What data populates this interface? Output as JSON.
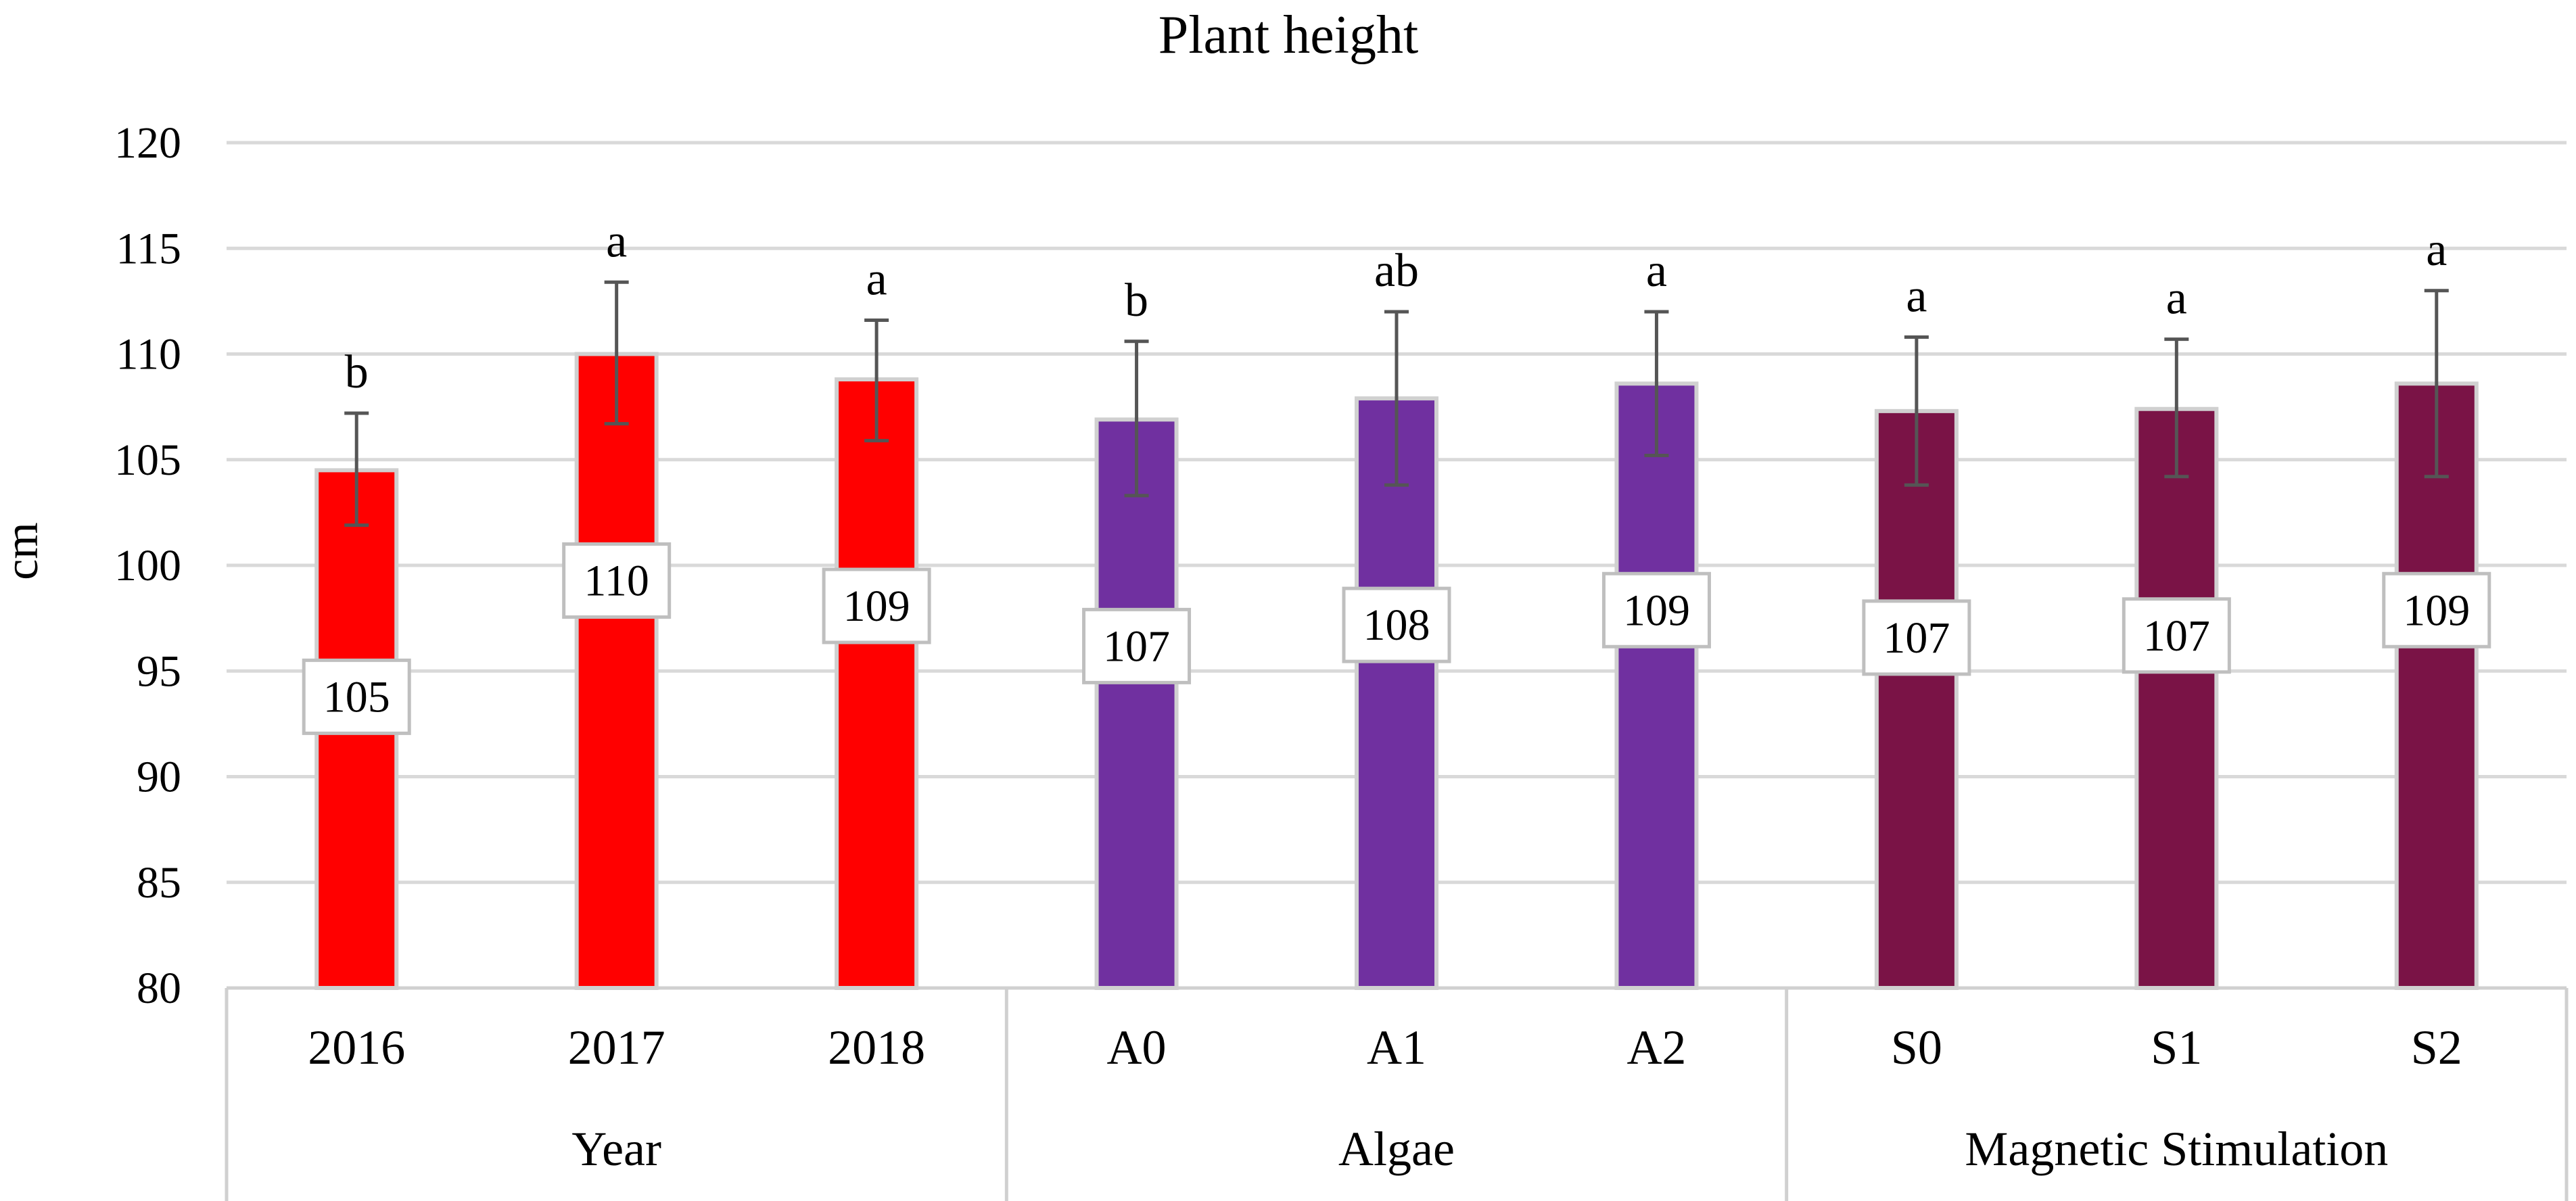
{
  "chart_data": {
    "type": "bar",
    "title": "Plant height",
    "xlabel": "",
    "ylabel": "cm",
    "ylim": [
      80,
      120
    ],
    "yticks": [
      80,
      85,
      90,
      95,
      100,
      105,
      110,
      115,
      120
    ],
    "grid": true,
    "legend": "none",
    "categories": [
      "2016",
      "2017",
      "2018",
      "A0",
      "A1",
      "A2",
      "S0",
      "S1",
      "S2"
    ],
    "values": [
      104.5,
      110.0,
      108.8,
      106.9,
      107.9,
      108.6,
      107.3,
      107.4,
      108.6
    ],
    "data_labels": [
      "105",
      "110",
      "109",
      "107",
      "108",
      "109",
      "107",
      "107",
      "109"
    ],
    "error_low": [
      101.9,
      106.7,
      105.9,
      103.3,
      103.8,
      105.2,
      103.8,
      104.2,
      104.2
    ],
    "error_high": [
      107.2,
      113.4,
      111.6,
      110.6,
      112.0,
      112.0,
      110.8,
      110.7,
      113.0
    ],
    "significance": [
      "b",
      "a",
      "a",
      "b",
      "ab",
      "a",
      "a",
      "a",
      "a"
    ],
    "bar_colors": [
      "#ff0000",
      "#ff0000",
      "#ff0000",
      "#7030a0",
      "#7030a0",
      "#7030a0",
      "#7a1346",
      "#7a1346",
      "#7a1346"
    ],
    "groups": [
      {
        "name": "Year",
        "categories": [
          "2016",
          "2017",
          "2018"
        ]
      },
      {
        "name": "Algae",
        "categories": [
          "A0",
          "A1",
          "A2"
        ]
      },
      {
        "name": "Magnetic Stimulation",
        "categories": [
          "S0",
          "S1",
          "S2"
        ]
      }
    ]
  }
}
